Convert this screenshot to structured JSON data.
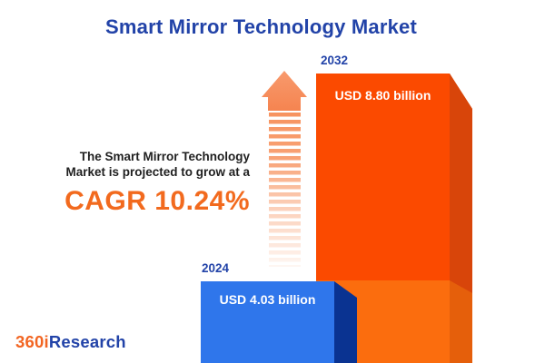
{
  "title": "Smart Mirror Technology Market",
  "annotation": {
    "line1": "The Smart Mirror Technology",
    "line2": "Market is projected to grow at a",
    "cagr_text": "CAGR 10.24%"
  },
  "chart_data": {
    "type": "bar",
    "title": "Smart Mirror Technology Market",
    "unit": "USD billion",
    "cagr_percent": 10.24,
    "categories": [
      "2024",
      "2032"
    ],
    "values": [
      4.03,
      8.8
    ],
    "bars": [
      {
        "year": "2024",
        "value": 4.03,
        "label": "USD 4.03 billion",
        "front_color": "#2F76EB",
        "side_color": "#0A3391"
      },
      {
        "year": "2032",
        "value": 8.8,
        "label": "USD 8.80 billion",
        "front_color": "#FB4A00",
        "side_color": "#D8450A",
        "lower_front_color": "#FB6D0E",
        "lower_side_color": "#E55F0B"
      }
    ],
    "legend": false,
    "grid": false,
    "growth_arrow": "up"
  },
  "logo": {
    "prefix": "360i",
    "suffix": "Research"
  },
  "colors": {
    "title_blue": "#2243A8",
    "accent_orange": "#F26A1E",
    "logo_orange": "#F26522",
    "body_text": "#1F1F1F",
    "background": "#FFFFFF",
    "bar_value_text": "#FFFFFF",
    "arrow_orange": "#F58450"
  }
}
